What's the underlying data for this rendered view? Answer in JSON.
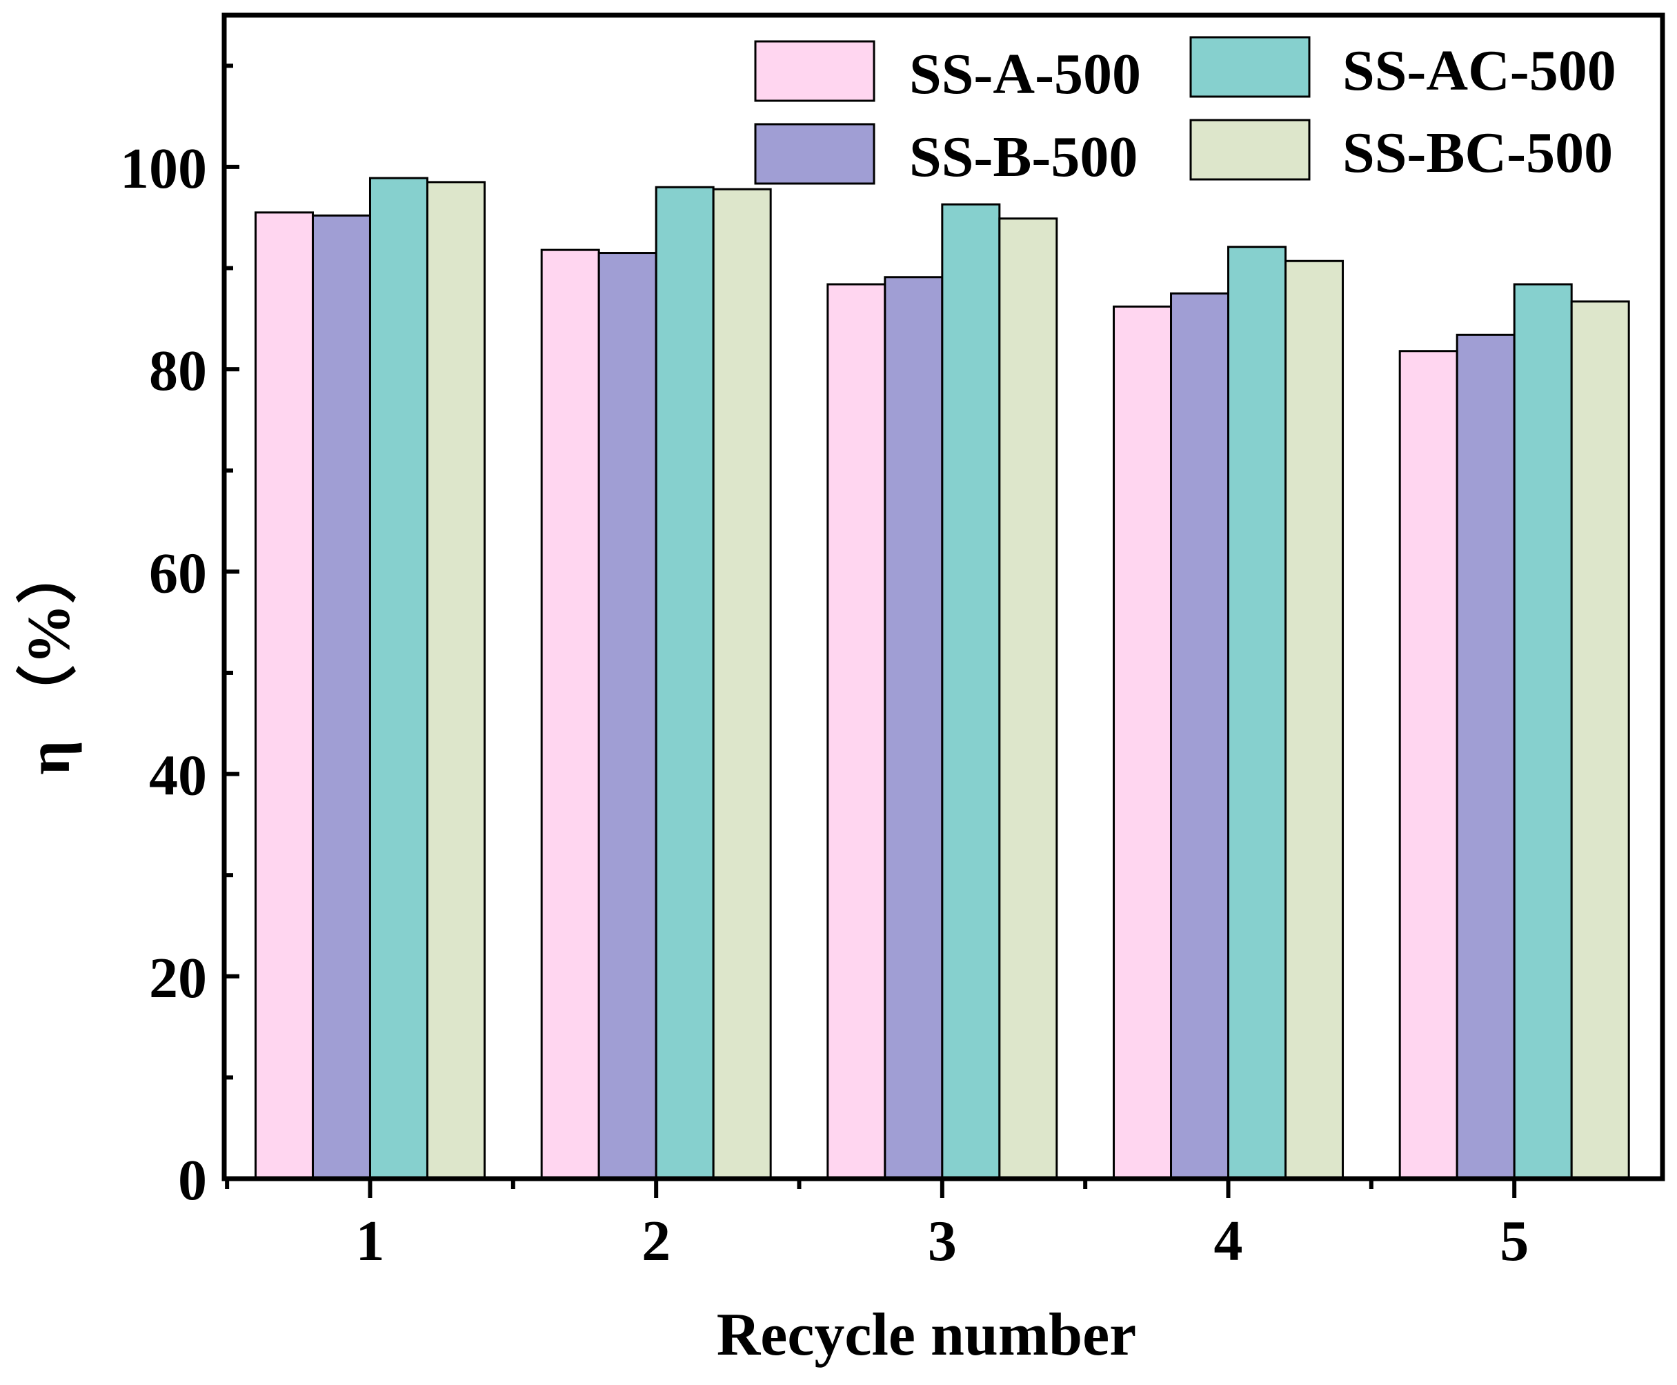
{
  "chart_data": {
    "type": "bar",
    "title": "",
    "xlabel": "Recycle number",
    "ylabel": "η （%）",
    "categories": [
      "1",
      "2",
      "3",
      "4",
      "5"
    ],
    "ylim": [
      0,
      115
    ],
    "yticks": [
      0,
      20,
      40,
      60,
      80,
      100
    ],
    "legend_position": "top-right",
    "series": [
      {
        "name": "SS-A-500",
        "color": "#FFD6F0",
        "values": [
          95.5,
          91.8,
          88.4,
          86.2,
          81.8
        ]
      },
      {
        "name": "SS-B-500",
        "color": "#A09ED4",
        "values": [
          95.2,
          91.5,
          89.1,
          87.5,
          83.4
        ]
      },
      {
        "name": "SS-AC-500",
        "color": "#86D0CE",
        "values": [
          98.9,
          98.0,
          96.3,
          92.1,
          88.4
        ]
      },
      {
        "name": "SS-BC-500",
        "color": "#DDE6CB",
        "values": [
          98.5,
          97.8,
          94.9,
          90.7,
          86.7
        ]
      }
    ]
  }
}
